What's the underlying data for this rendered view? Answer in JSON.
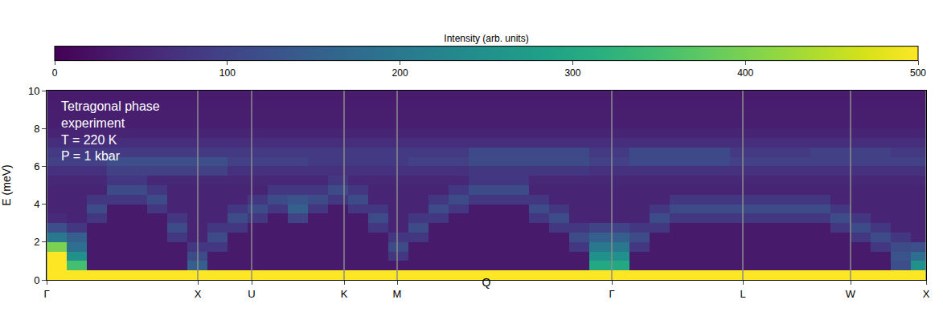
{
  "chart_data": {
    "type": "heatmap",
    "x_label": "Q",
    "y_label": "E (meV)",
    "annotations": [
      "Tetragonal phase",
      "experiment",
      "T = 220 K",
      "P = 1 kbar"
    ],
    "xlim": [
      0,
      10.94
    ],
    "xticks": [
      {
        "value": 0,
        "label": "Γ"
      },
      {
        "value": 1.88,
        "label": "X"
      },
      {
        "value": 2.55,
        "label": "U"
      },
      {
        "value": 3.7,
        "label": "K"
      },
      {
        "value": 4.36,
        "label": "M"
      },
      {
        "value": 7.03,
        "label": "Γ"
      },
      {
        "value": 8.66,
        "label": "L"
      },
      {
        "value": 10.0,
        "label": "W"
      },
      {
        "value": 10.94,
        "label": "X"
      }
    ],
    "ylim": [
      0,
      10
    ],
    "yticks": [
      0,
      2,
      4,
      6,
      8,
      10
    ],
    "grid": true,
    "colorbar": {
      "title": "Intensity (arb. units)",
      "range": [
        0,
        500
      ],
      "ticks": [
        0,
        100,
        200,
        300,
        400,
        500
      ]
    },
    "x": [
      0.125,
      0.375,
      0.625,
      0.875,
      1.125,
      1.375,
      1.625,
      1.875,
      2.125,
      2.375,
      2.625,
      2.875,
      3.125,
      3.375,
      3.625,
      3.875,
      4.125,
      4.375,
      4.625,
      4.875,
      5.125,
      5.375,
      5.625,
      5.875,
      6.125,
      6.375,
      6.625,
      6.875,
      7.125,
      7.375,
      7.625,
      7.875,
      8.125,
      8.375,
      8.625,
      8.875,
      9.125,
      9.375,
      9.625,
      9.875,
      10.125,
      10.375,
      10.625,
      10.875
    ],
    "y": [
      0.25,
      0.75,
      1.25,
      1.75,
      2.25,
      2.75,
      3.25,
      3.75,
      4.25,
      4.75,
      5.25,
      5.75,
      6.25,
      6.75,
      7.25,
      7.75,
      8.25,
      8.75,
      9.25,
      9.75
    ],
    "z": [
      [
        600,
        600,
        600,
        600,
        600,
        600,
        600,
        600,
        600,
        600,
        600,
        600,
        600,
        600,
        600,
        600,
        600,
        600,
        600,
        600,
        600,
        600,
        600,
        600,
        600,
        600,
        600,
        600,
        600,
        600,
        600,
        600,
        600,
        600,
        600,
        600,
        600,
        600,
        600,
        600,
        600,
        600,
        600,
        600
      ],
      [
        600,
        350,
        35,
        35,
        35,
        35,
        35,
        150,
        35,
        35,
        35,
        35,
        35,
        35,
        35,
        35,
        35,
        35,
        35,
        35,
        35,
        35,
        35,
        35,
        35,
        35,
        35,
        300,
        300,
        35,
        35,
        35,
        35,
        35,
        35,
        35,
        35,
        35,
        35,
        35,
        35,
        35,
        120,
        250
      ],
      [
        500,
        250,
        35,
        35,
        35,
        35,
        35,
        115,
        35,
        35,
        35,
        35,
        35,
        35,
        35,
        35,
        35,
        80,
        35,
        35,
        35,
        35,
        35,
        35,
        35,
        35,
        35,
        250,
        250,
        35,
        35,
        35,
        35,
        35,
        35,
        35,
        35,
        35,
        35,
        35,
        35,
        35,
        130,
        180
      ],
      [
        400,
        180,
        35,
        35,
        35,
        35,
        35,
        80,
        80,
        35,
        35,
        35,
        35,
        35,
        35,
        35,
        35,
        115,
        35,
        35,
        35,
        35,
        35,
        35,
        35,
        35,
        80,
        200,
        200,
        80,
        35,
        35,
        35,
        35,
        35,
        35,
        35,
        35,
        35,
        35,
        35,
        80,
        115,
        120
      ],
      [
        200,
        150,
        35,
        35,
        35,
        35,
        80,
        50,
        115,
        35,
        35,
        35,
        35,
        35,
        35,
        35,
        35,
        80,
        80,
        35,
        35,
        35,
        35,
        35,
        35,
        35,
        115,
        150,
        150,
        115,
        35,
        35,
        35,
        35,
        35,
        35,
        35,
        35,
        35,
        35,
        80,
        115,
        80,
        50
      ],
      [
        120,
        80,
        35,
        35,
        35,
        35,
        115,
        50,
        80,
        80,
        35,
        35,
        35,
        35,
        35,
        35,
        80,
        50,
        115,
        35,
        35,
        35,
        35,
        35,
        35,
        80,
        80,
        100,
        100,
        80,
        80,
        35,
        35,
        35,
        35,
        35,
        35,
        35,
        35,
        80,
        115,
        80,
        50,
        50
      ],
      [
        60,
        50,
        80,
        35,
        35,
        35,
        80,
        50,
        50,
        115,
        80,
        35,
        100,
        35,
        35,
        35,
        115,
        50,
        80,
        80,
        35,
        35,
        35,
        35,
        80,
        115,
        50,
        50,
        50,
        50,
        115,
        80,
        80,
        80,
        80,
        80,
        80,
        80,
        80,
        115,
        80,
        50,
        50,
        50
      ],
      [
        50,
        50,
        115,
        35,
        35,
        80,
        50,
        50,
        50,
        80,
        115,
        80,
        150,
        80,
        35,
        80,
        80,
        50,
        50,
        115,
        80,
        35,
        35,
        35,
        115,
        80,
        50,
        50,
        50,
        50,
        80,
        115,
        115,
        115,
        115,
        115,
        115,
        115,
        115,
        80,
        50,
        50,
        50,
        50
      ],
      [
        50,
        50,
        80,
        80,
        80,
        115,
        50,
        50,
        50,
        50,
        80,
        115,
        130,
        115,
        80,
        115,
        50,
        50,
        50,
        80,
        115,
        80,
        80,
        80,
        80,
        50,
        50,
        50,
        50,
        50,
        50,
        80,
        80,
        80,
        80,
        80,
        80,
        80,
        80,
        50,
        50,
        50,
        50,
        50
      ],
      [
        50,
        50,
        50,
        115,
        115,
        80,
        50,
        50,
        50,
        50,
        50,
        80,
        80,
        80,
        115,
        80,
        50,
        50,
        50,
        50,
        80,
        115,
        115,
        115,
        50,
        50,
        50,
        50,
        50,
        50,
        50,
        50,
        50,
        50,
        50,
        50,
        50,
        50,
        50,
        50,
        50,
        50,
        50,
        50
      ],
      [
        55,
        55,
        55,
        80,
        80,
        55,
        55,
        55,
        55,
        55,
        55,
        55,
        55,
        55,
        80,
        55,
        55,
        55,
        55,
        55,
        55,
        80,
        80,
        80,
        55,
        55,
        55,
        55,
        55,
        55,
        55,
        55,
        55,
        55,
        55,
        55,
        55,
        55,
        55,
        55,
        55,
        55,
        55,
        55
      ],
      [
        70,
        70,
        70,
        95,
        95,
        95,
        95,
        95,
        95,
        70,
        70,
        70,
        70,
        70,
        70,
        70,
        70,
        70,
        70,
        70,
        70,
        80,
        80,
        80,
        80,
        80,
        80,
        70,
        70,
        70,
        70,
        70,
        70,
        70,
        70,
        70,
        70,
        70,
        70,
        70,
        70,
        70,
        70,
        70
      ],
      [
        95,
        95,
        95,
        120,
        120,
        120,
        120,
        120,
        120,
        95,
        95,
        95,
        95,
        85,
        85,
        85,
        85,
        85,
        95,
        95,
        95,
        115,
        115,
        115,
        115,
        115,
        115,
        95,
        95,
        110,
        110,
        110,
        110,
        110,
        95,
        95,
        95,
        95,
        95,
        95,
        95,
        95,
        95,
        95
      ],
      [
        85,
        85,
        85,
        85,
        85,
        85,
        85,
        85,
        85,
        85,
        85,
        85,
        85,
        85,
        85,
        85,
        85,
        85,
        85,
        85,
        85,
        110,
        110,
        110,
        110,
        110,
        110,
        85,
        85,
        110,
        110,
        110,
        110,
        110,
        85,
        85,
        85,
        85,
        95,
        95,
        95,
        95,
        85,
        85
      ],
      [
        65,
        65,
        65,
        65,
        65,
        65,
        65,
        65,
        65,
        65,
        65,
        65,
        65,
        65,
        65,
        65,
        65,
        65,
        65,
        65,
        65,
        65,
        65,
        65,
        65,
        65,
        65,
        65,
        65,
        65,
        65,
        65,
        65,
        65,
        65,
        65,
        65,
        65,
        65,
        65,
        65,
        65,
        65,
        65
      ],
      [
        50,
        50,
        50,
        50,
        50,
        50,
        50,
        50,
        50,
        50,
        50,
        50,
        50,
        50,
        50,
        50,
        50,
        50,
        50,
        50,
        50,
        50,
        50,
        50,
        50,
        50,
        50,
        50,
        50,
        50,
        50,
        50,
        50,
        50,
        50,
        50,
        50,
        50,
        50,
        50,
        50,
        50,
        50,
        50
      ],
      [
        42,
        42,
        42,
        42,
        42,
        42,
        42,
        42,
        42,
        42,
        42,
        42,
        42,
        42,
        42,
        42,
        42,
        42,
        42,
        42,
        42,
        42,
        42,
        42,
        42,
        42,
        42,
        42,
        42,
        42,
        42,
        42,
        42,
        42,
        42,
        42,
        42,
        42,
        42,
        42,
        42,
        42,
        42,
        42
      ],
      [
        40,
        40,
        40,
        40,
        40,
        40,
        40,
        40,
        40,
        40,
        40,
        40,
        40,
        40,
        40,
        40,
        40,
        40,
        40,
        40,
        40,
        40,
        40,
        40,
        40,
        40,
        40,
        40,
        40,
        40,
        40,
        40,
        40,
        40,
        40,
        40,
        40,
        40,
        40,
        40,
        40,
        40,
        40,
        40
      ],
      [
        38,
        38,
        38,
        38,
        38,
        38,
        38,
        38,
        38,
        38,
        38,
        38,
        38,
        38,
        38,
        38,
        38,
        38,
        38,
        38,
        38,
        38,
        38,
        38,
        38,
        38,
        38,
        38,
        38,
        38,
        38,
        38,
        38,
        38,
        38,
        38,
        38,
        38,
        38,
        38,
        38,
        38,
        38,
        38
      ],
      [
        36,
        36,
        36,
        36,
        36,
        36,
        36,
        36,
        36,
        36,
        36,
        36,
        36,
        36,
        36,
        36,
        36,
        36,
        36,
        36,
        36,
        36,
        36,
        36,
        36,
        36,
        36,
        36,
        36,
        36,
        36,
        36,
        36,
        36,
        36,
        36,
        36,
        36,
        36,
        36,
        36,
        36,
        36,
        36
      ]
    ]
  }
}
